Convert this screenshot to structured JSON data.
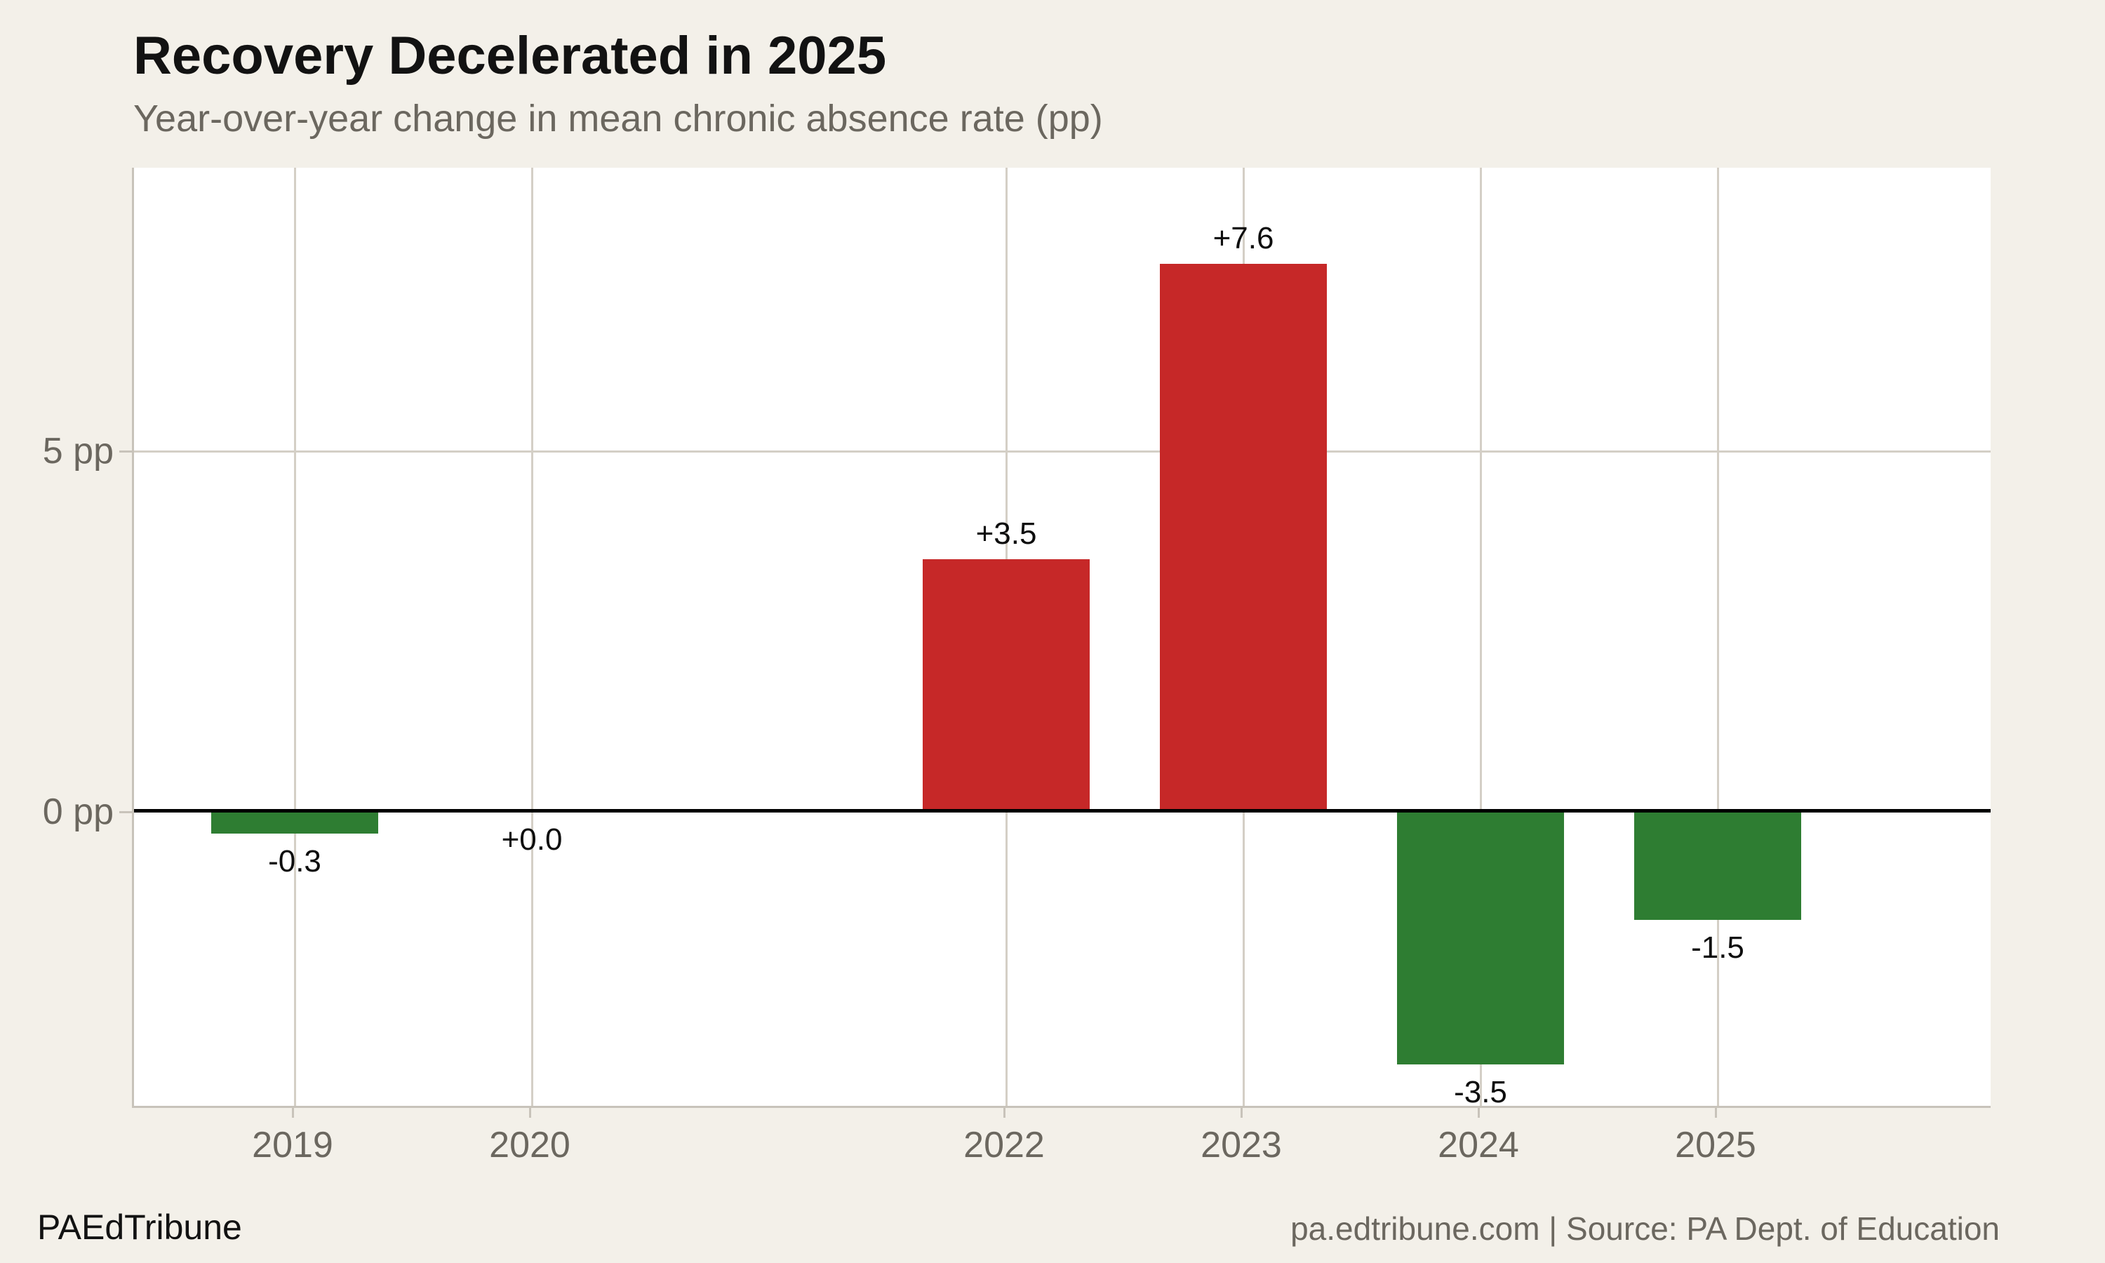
{
  "header": {
    "title": "Recovery Decelerated in 2025",
    "subtitle": "Year-over-year change in mean chronic absence rate (pp)"
  },
  "footer": {
    "brand": "PAEdTribune",
    "source": "pa.edtribune.com | Source: PA Dept. of Education"
  },
  "chart_data": {
    "type": "bar",
    "title": "Recovery Decelerated in 2025",
    "subtitle": "Year-over-year change in mean chronic absence rate (pp)",
    "categories": [
      "2019",
      "2020",
      "2022",
      "2023",
      "2024",
      "2025"
    ],
    "category_years": [
      2019,
      2020,
      2022,
      2023,
      2024,
      2025
    ],
    "values": [
      -0.3,
      0.0,
      3.5,
      7.6,
      -3.5,
      -1.5
    ],
    "value_labels": [
      "-0.3",
      "+0.0",
      "+3.5",
      "+7.6",
      "-3.5",
      "-1.5"
    ],
    "xlabel": "",
    "ylabel": "pp",
    "ylim": [
      -4.1,
      8.95
    ],
    "yticks": [
      {
        "value": 5,
        "label": "5 pp"
      },
      {
        "value": 0,
        "label": "0 pp"
      }
    ],
    "grid": true,
    "legend": null,
    "colors": {
      "positive_bar": "#c62828",
      "negative_bar": "#2e7d32",
      "background": "#f3f0e9",
      "plot_background": "#ffffff",
      "gridline": "#d4cfc6",
      "spine": "#c8c3ba",
      "zero_line": "#000000",
      "title_text": "#121212",
      "muted_text": "#6b675f",
      "label_text": "#0d0d0d"
    }
  }
}
